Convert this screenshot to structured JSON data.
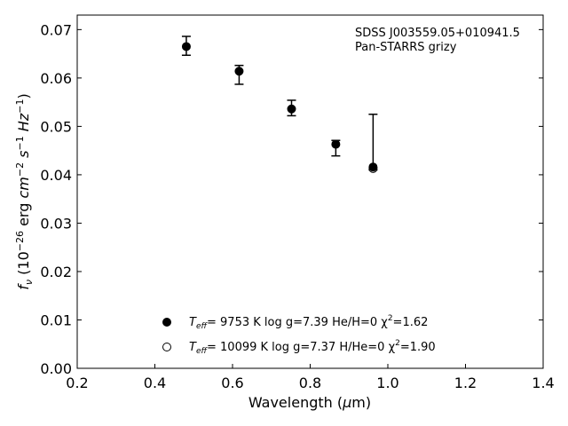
{
  "chart_data": {
    "type": "scatter",
    "title": "",
    "xlabel": "Wavelength (μm)",
    "ylabel": "f_ν (10^-26 erg cm^-2 s^-1 Hz^-1)",
    "xlim": [
      0.2,
      1.4
    ],
    "ylim": [
      0.0,
      0.073
    ],
    "x_ticks": [
      0.2,
      0.4,
      0.6,
      0.8,
      1.0,
      1.2,
      1.4
    ],
    "y_ticks": [
      0.0,
      0.01,
      0.02,
      0.03,
      0.04,
      0.05,
      0.06,
      0.07
    ],
    "x_tick_labels": [
      "0.2",
      "0.4",
      "0.6",
      "0.8",
      "1.0",
      "1.2",
      "1.4"
    ],
    "y_tick_labels": [
      "0.00",
      "0.01",
      "0.02",
      "0.03",
      "0.04",
      "0.05",
      "0.06",
      "0.07"
    ],
    "grid": false,
    "annotation": {
      "line1": "SDSS J003559.05+010941.5",
      "line2": "Pan-STARRS grizy"
    },
    "observed": {
      "x": [
        0.481,
        0.617,
        0.752,
        0.866,
        0.962
      ],
      "y": [
        0.0665,
        0.0614,
        0.0536,
        0.0463,
        0.0416
      ],
      "err_low": [
        0.0018,
        0.0027,
        0.0014,
        0.0024,
        0.0006
      ],
      "err_high": [
        0.0021,
        0.0012,
        0.0018,
        0.0008,
        0.0109
      ]
    },
    "series": [
      {
        "marker": "filled",
        "label": {
          "teff": "T",
          "teff_sub": "eff",
          "rest": "=  9753 K  log g=7.39  He/H=0  χ",
          "chi_sup": "2",
          "chi_val": "=1.62"
        },
        "values": [
          0.0665,
          0.0614,
          0.0536,
          0.0463,
          0.0416
        ]
      },
      {
        "marker": "open",
        "label": {
          "teff": "T",
          "teff_sub": "eff",
          "rest": "= 10099 K  log g=7.37  H/He=0  χ",
          "chi_sup": "2",
          "chi_val": "=1.90"
        },
        "values": [
          null,
          null,
          null,
          null,
          0.0413
        ]
      }
    ],
    "legend_placement": "lower-center"
  }
}
